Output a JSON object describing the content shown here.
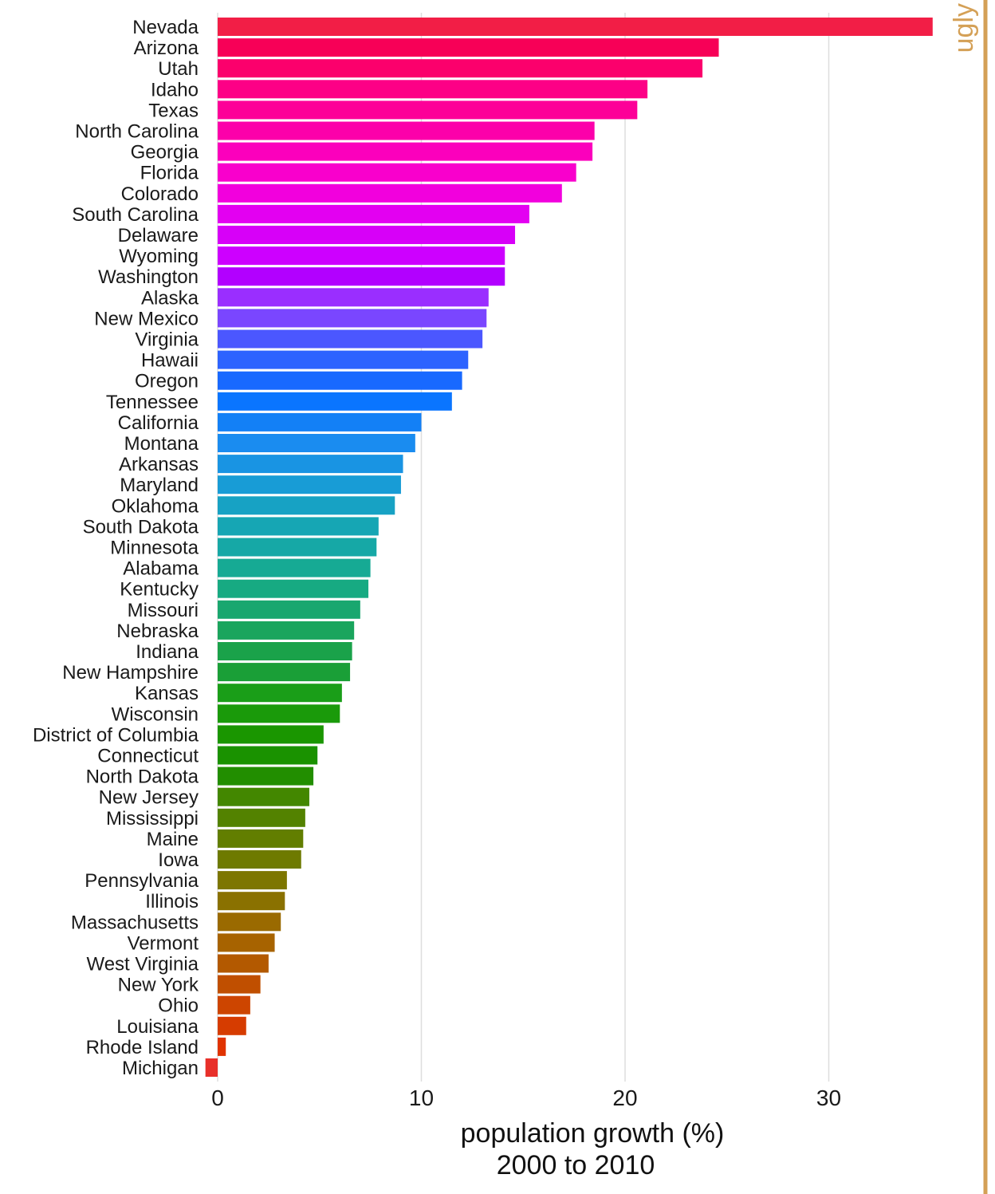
{
  "chart_data": {
    "type": "bar",
    "orientation": "horizontal",
    "xlabel": [
      "population growth (%)",
      "2000 to 2010"
    ],
    "ylabel": "",
    "facet_label": "ugly",
    "facet_color": "#D4A056",
    "grid": "vertical-major",
    "xlim": [
      -0.6,
      36.2
    ],
    "xticks": [
      0,
      10,
      20,
      30
    ],
    "categories": [
      "Nevada",
      "Arizona",
      "Utah",
      "Idaho",
      "Texas",
      "North Carolina",
      "Georgia",
      "Florida",
      "Colorado",
      "South Carolina",
      "Delaware",
      "Wyoming",
      "Washington",
      "Alaska",
      "New Mexico",
      "Virginia",
      "Hawaii",
      "Oregon",
      "Tennessee",
      "California",
      "Montana",
      "Arkansas",
      "Maryland",
      "Oklahoma",
      "South Dakota",
      "Minnesota",
      "Alabama",
      "Kentucky",
      "Missouri",
      "Nebraska",
      "Indiana",
      "New Hampshire",
      "Kansas",
      "Wisconsin",
      "District of Columbia",
      "Connecticut",
      "North Dakota",
      "New Jersey",
      "Mississippi",
      "Maine",
      "Iowa",
      "Pennsylvania",
      "Illinois",
      "Massachusetts",
      "Vermont",
      "West Virginia",
      "New York",
      "Ohio",
      "Louisiana",
      "Rhode Island",
      "Michigan"
    ],
    "values": [
      35.1,
      24.6,
      23.8,
      21.1,
      20.6,
      18.5,
      18.4,
      17.6,
      16.9,
      15.3,
      14.6,
      14.1,
      14.1,
      13.3,
      13.2,
      13.0,
      12.3,
      12.0,
      11.5,
      10.0,
      9.7,
      9.1,
      9.0,
      8.7,
      7.9,
      7.8,
      7.5,
      7.4,
      7.0,
      6.7,
      6.6,
      6.5,
      6.1,
      6.0,
      5.2,
      4.9,
      4.7,
      4.5,
      4.3,
      4.2,
      4.1,
      3.4,
      3.3,
      3.1,
      2.8,
      2.5,
      2.1,
      1.6,
      1.4,
      0.4,
      -0.6
    ],
    "colors": [
      "#F21E46",
      "#F70057",
      "#FB006C",
      "#FD0086",
      "#FD0098",
      "#FC00AA",
      "#FB00BC",
      "#F900CC",
      "#F200DD",
      "#E300F1",
      "#D700F8",
      "#CD00FF",
      "#B200FF",
      "#9A2EFF",
      "#7A46FF",
      "#4B57FF",
      "#2D63FF",
      "#1869FF",
      "#0A75FF",
      "#1380F6",
      "#1A8CF0",
      "#1994E3",
      "#189CD6",
      "#17A2C4",
      "#16A6B4",
      "#16A8A6",
      "#16AA94",
      "#17AA82",
      "#19A76F",
      "#1AA55D",
      "#1AA24A",
      "#1A9F37",
      "#1A9E18",
      "#1A9A0A",
      "#1A9600",
      "#1A9200",
      "#228E00",
      "#438700",
      "#538200",
      "#627E00",
      "#6E7A00",
      "#7D7600",
      "#8A7100",
      "#9A6A00",
      "#A76300",
      "#B35900",
      "#C04F00",
      "#CD4500",
      "#D63C00",
      "#E03300",
      "#E8302A"
    ]
  }
}
